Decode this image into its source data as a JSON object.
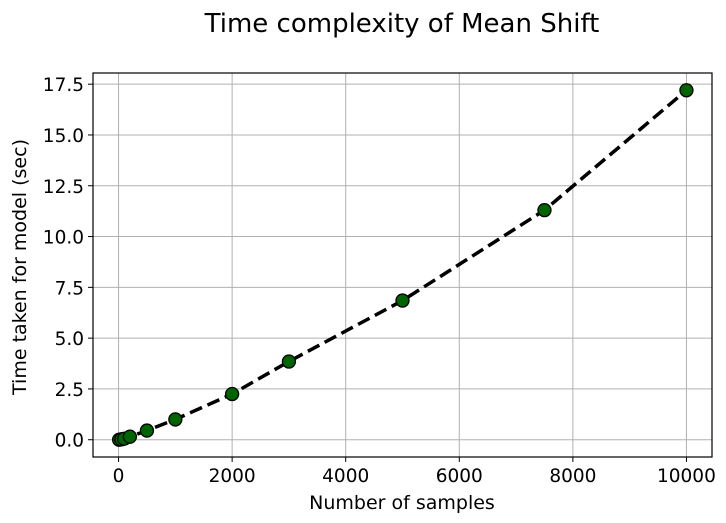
{
  "chart_data": {
    "type": "line",
    "title": "Time complexity of Mean Shift",
    "xlabel": "Number of samples",
    "ylabel": "Time taken for model (sec)",
    "xlim": [
      -450,
      10450
    ],
    "ylim": [
      -0.85,
      18.05
    ],
    "xticks": [
      0,
      2000,
      4000,
      6000,
      8000,
      10000
    ],
    "yticks": [
      0.0,
      2.5,
      5.0,
      7.5,
      10.0,
      12.5,
      15.0,
      17.5
    ],
    "xtick_labels": [
      "0",
      "2000",
      "4000",
      "6000",
      "8000",
      "10000"
    ],
    "ytick_labels": [
      "0.0",
      "2.5",
      "5.0",
      "7.5",
      "10.0",
      "12.5",
      "15.0",
      "17.5"
    ],
    "grid": true,
    "series": [
      {
        "x": [
          10,
          50,
          100,
          200,
          500,
          1000,
          2000,
          3000,
          5000,
          7500,
          10000
        ],
        "y": [
          0.0,
          0.02,
          0.05,
          0.15,
          0.45,
          1.0,
          2.25,
          3.85,
          6.85,
          11.3,
          17.2
        ],
        "line_color": "#000000",
        "line_style": "dashed",
        "marker_color": "#006400",
        "marker_edge_color": "#000000"
      }
    ]
  }
}
